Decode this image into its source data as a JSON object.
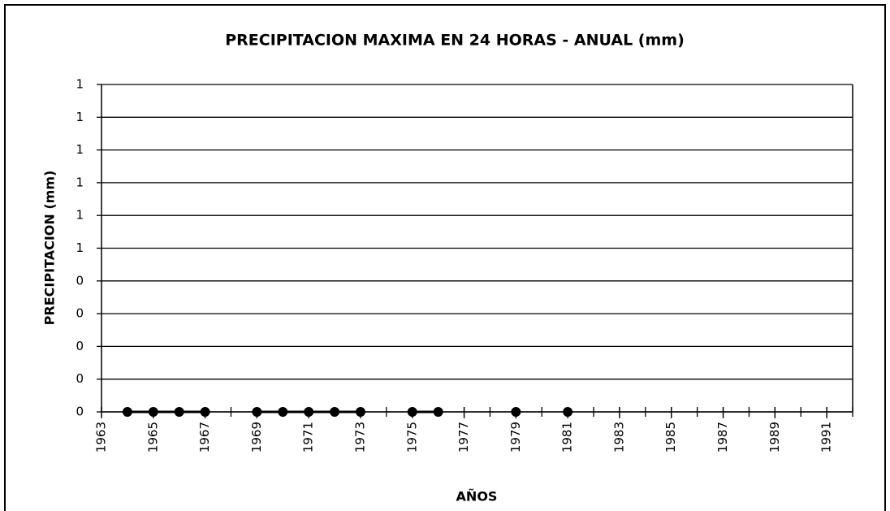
{
  "chart_data": {
    "type": "line",
    "title": "PRECIPITACION MAXIMA EN 24 HORAS - ANUAL (mm)",
    "x_label": "AÑOS",
    "y_label": "PRECIPITACION (mm)",
    "x": [
      1964,
      1965,
      1966,
      1967,
      1968,
      1969,
      1970,
      1971,
      1972,
      1973,
      1974,
      1975,
      1976,
      1977,
      1978,
      1979,
      1980,
      1981
    ],
    "series": [
      {
        "name": "PRECIPITACION",
        "color": "#000000",
        "values": [
          0,
          0,
          0,
          0,
          null,
          0,
          0,
          0,
          0,
          0,
          null,
          0,
          0,
          null,
          null,
          0,
          null,
          0
        ]
      }
    ],
    "xlim": [
      1963,
      1992
    ],
    "xticks": [
      1963,
      1965,
      1967,
      1969,
      1971,
      1973,
      1975,
      1977,
      1979,
      1981,
      1983,
      1985,
      1987,
      1989,
      1991
    ],
    "ylim": [
      0,
      1
    ],
    "yticks": [
      0,
      {
        "value": 0.1,
        "label": "0"
      },
      {
        "value": 0.2,
        "label": "0"
      },
      {
        "value": 0.3,
        "label": "0"
      },
      {
        "value": 0.4,
        "label": "0"
      },
      {
        "value": 0.5,
        "label": "1"
      },
      {
        "value": 0.6,
        "label": "1"
      },
      {
        "value": 0.7,
        "label": "1"
      },
      {
        "value": 0.8,
        "label": "1"
      },
      {
        "value": 0.9,
        "label": "1"
      },
      1
    ],
    "grid": true
  }
}
